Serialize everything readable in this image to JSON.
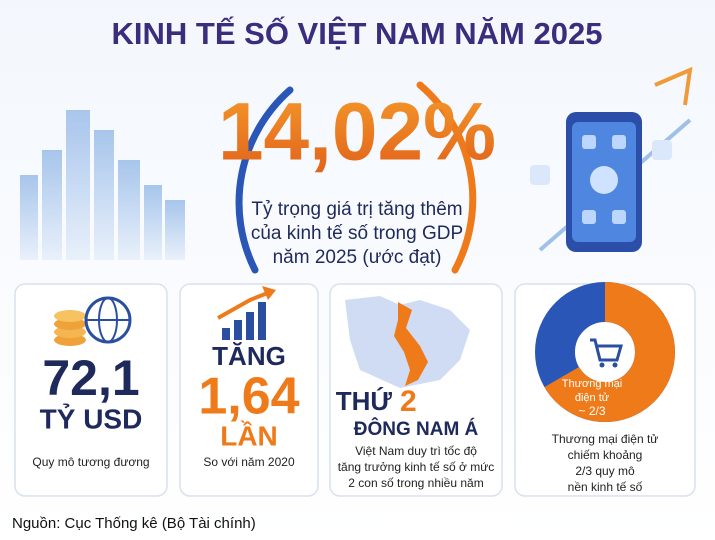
{
  "header": {
    "title": "KINH TẾ SỐ VIỆT NAM NĂM 2025"
  },
  "highlight": {
    "value": "14,02%",
    "description": [
      "Tỷ trọng giá trị tăng thêm",
      "của kinh tế số trong GDP",
      "năm 2025 (ước đạt)"
    ]
  },
  "cards": [
    {
      "value": "72,1",
      "unit": "TỶ USD",
      "caption": "Quy mô tương đương"
    },
    {
      "prefix": "TĂNG",
      "value": "1,64",
      "unit": "LẦN",
      "caption": "So với năm 2020"
    },
    {
      "prefix": "THỨ",
      "value": "2",
      "unit": "ĐÔNG NAM Á",
      "caption": [
        "Việt Nam duy trì tốc độ",
        "tăng trưởng kinh tế số ở mức",
        "2 con số trong nhiều năm"
      ]
    },
    {
      "label": [
        "Thương mại",
        "điện tử",
        "~ 2/3"
      ],
      "caption": [
        "Thương mại điện tử",
        "chiếm khoảng",
        "2/3 quy mô",
        "nền kinh tế số"
      ]
    }
  ],
  "footer": {
    "source": "Nguồn: Cục Thống kê (Bộ Tài chính)"
  }
}
